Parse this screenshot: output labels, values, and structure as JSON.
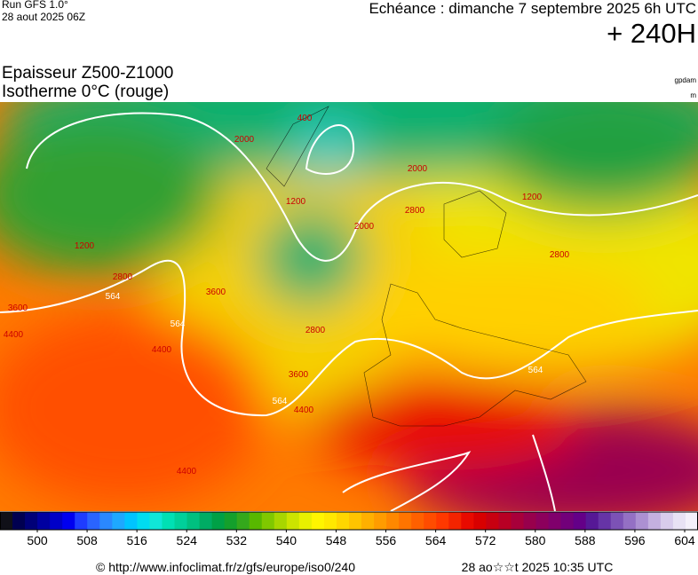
{
  "header": {
    "run": "Run GFS 1.0°",
    "date": "28 aout 2025 06Z",
    "echeance": "Echéance : dimanche 7 septembre 2025 6h UTC",
    "lead": "+ 240H"
  },
  "legend_title": {
    "line1": "Epaisseur Z500-Z1000",
    "line2": "Isotherme 0°C (rouge)"
  },
  "units": [
    "gpdam",
    "m"
  ],
  "colorbar": {
    "ticks": [
      500,
      508,
      516,
      524,
      532,
      540,
      548,
      556,
      564,
      572,
      580,
      588,
      596,
      604
    ],
    "colors": [
      "#101018",
      "#000050",
      "#000078",
      "#0000a0",
      "#0000c8",
      "#0000f0",
      "#1e3cff",
      "#2a64ff",
      "#2a88ff",
      "#1ea8ff",
      "#00c4ff",
      "#00dcf0",
      "#10e6d8",
      "#00e0b4",
      "#00d09a",
      "#00c080",
      "#00ac64",
      "#00a046",
      "#14a02c",
      "#34a81c",
      "#58b800",
      "#80c800",
      "#a8d600",
      "#cce400",
      "#e8f000",
      "#fff500",
      "#ffe800",
      "#ffd600",
      "#ffc400",
      "#ffb000",
      "#ff9c00",
      "#ff8800",
      "#ff7400",
      "#ff6000",
      "#ff4c00",
      "#ff3800",
      "#f42400",
      "#e80a00",
      "#d80000",
      "#c80010",
      "#b80024",
      "#a8003a",
      "#98004c",
      "#8c005c",
      "#80006c",
      "#72007a",
      "#640088",
      "#561896",
      "#6634a6",
      "#7c52b6",
      "#9470c4",
      "#ac90d2",
      "#c4b0e0",
      "#d8ccec",
      "#e8e2f4",
      "#f4f0fa"
    ]
  },
  "contour_labels": [
    "564",
    "564",
    "564",
    "564",
    "1200",
    "1200",
    "1200",
    "2000",
    "2000",
    "2000",
    "2800",
    "2800",
    "2800",
    "2800",
    "3600",
    "3600",
    "3600",
    "4400",
    "4400",
    "4400",
    "4400",
    "400"
  ],
  "footer": {
    "url": "© http://www.infoclimat.fr/z/gfs/europe/iso0/240",
    "timestamp": "28 ao☆☆t 2025 10:35 UTC"
  }
}
